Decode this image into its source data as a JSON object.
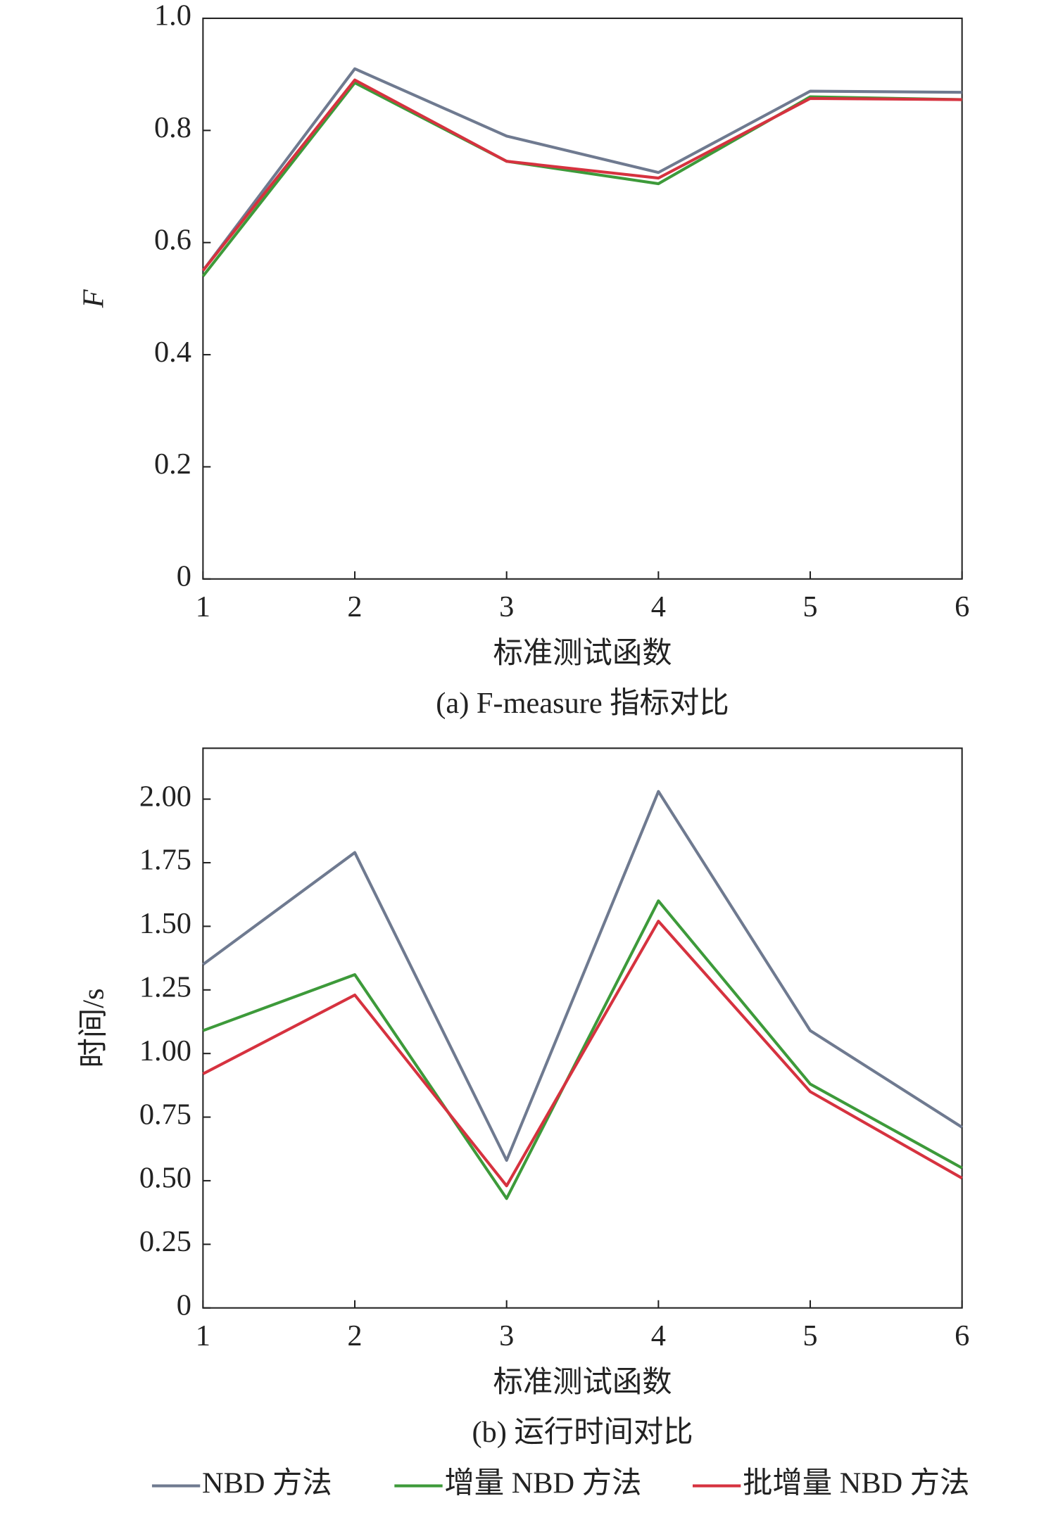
{
  "chart_data": [
    {
      "type": "line",
      "y_label": "F",
      "x_label": "标准测试函数",
      "caption": "(a) F-measure 指标对比",
      "x": [
        1,
        2,
        3,
        4,
        5,
        6
      ],
      "xlim": [
        1,
        6
      ],
      "xticks": [
        1,
        2,
        3,
        4,
        5,
        6
      ],
      "ylim": [
        0,
        1
      ],
      "yticks": [
        0,
        0.2,
        0.4,
        0.6,
        0.8,
        {
          "value": 1,
          "label": "1.0"
        }
      ],
      "series": [
        {
          "name": "NBD 方法",
          "color": "#6f7a90",
          "values": [
            0.55,
            0.91,
            0.79,
            0.725,
            0.87,
            0.868
          ]
        },
        {
          "name": "增量 NBD 方法",
          "color": "#3d9a3a",
          "values": [
            0.54,
            0.885,
            0.745,
            0.705,
            0.86,
            0.855
          ]
        },
        {
          "name": "批增量 NBD 方法",
          "color": "#d6323f",
          "values": [
            0.55,
            0.89,
            0.745,
            0.715,
            0.857,
            0.855
          ]
        }
      ]
    },
    {
      "type": "line",
      "y_label": "时间/s",
      "x_label": "标准测试函数",
      "caption": "(b) 运行时间对比",
      "x": [
        1,
        2,
        3,
        4,
        5,
        6
      ],
      "xlim": [
        1,
        6
      ],
      "xticks": [
        1,
        2,
        3,
        4,
        5,
        6
      ],
      "ylim": [
        0,
        2.2
      ],
      "yticks": [
        0,
        0.25,
        {
          "value": 0.5,
          "label": "0.50"
        },
        0.75,
        {
          "value": 1,
          "label": "1.00"
        },
        1.25,
        {
          "value": 1.5,
          "label": "1.50"
        },
        1.75,
        {
          "value": 2,
          "label": "2.00"
        }
      ],
      "series": [
        {
          "color": "#6f7a90",
          "values": [
            1.35,
            1.79,
            0.58,
            2.03,
            1.09,
            0.71
          ]
        },
        {
          "color": "#3d9a3a",
          "values": [
            1.09,
            1.31,
            0.43,
            1.6,
            0.88,
            0.55
          ]
        },
        {
          "color": "#d6323f",
          "values": [
            0.92,
            1.23,
            0.48,
            1.52,
            0.85,
            0.51
          ]
        }
      ]
    }
  ]
}
